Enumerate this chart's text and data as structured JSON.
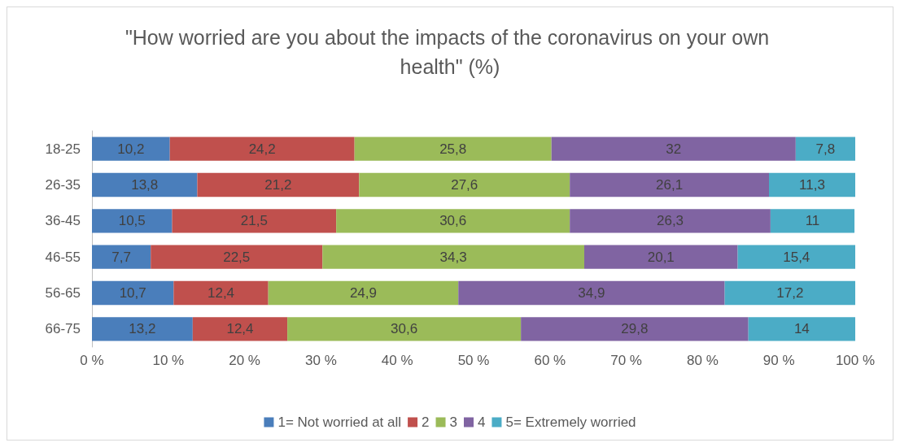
{
  "chart_data": {
    "type": "bar",
    "orientation": "horizontal",
    "stacked": true,
    "title": "\"How worried are you about the impacts of the coronavirus on your own health\" (%)",
    "categories": [
      "18-25",
      "26-35",
      "36-45",
      "46-55",
      "56-65",
      "66-75"
    ],
    "series": [
      {
        "name": "1= Not worried at all",
        "color": "#4a7ebb",
        "values": [
          10.2,
          13.8,
          10.5,
          7.7,
          10.7,
          13.2
        ],
        "value_labels": [
          "10,2",
          "13,8",
          "10,5",
          "7,7",
          "10,7",
          "13,2"
        ]
      },
      {
        "name": "2",
        "color": "#c0504d",
        "values": [
          24.2,
          21.2,
          21.5,
          22.5,
          12.4,
          12.4
        ],
        "value_labels": [
          "24,2",
          "21,2",
          "21,5",
          "22,5",
          "12,4",
          "12,4"
        ]
      },
      {
        "name": "3",
        "color": "#9bbb59",
        "values": [
          25.8,
          27.6,
          30.6,
          34.3,
          24.9,
          30.6
        ],
        "value_labels": [
          "25,8",
          "27,6",
          "30,6",
          "34,3",
          "24,9",
          "30,6"
        ]
      },
      {
        "name": "4",
        "color": "#8064a2",
        "values": [
          32,
          26.1,
          26.3,
          20.1,
          34.9,
          29.8
        ],
        "value_labels": [
          "32",
          "26,1",
          "26,3",
          "20,1",
          "34,9",
          "29,8"
        ]
      },
      {
        "name": "5= Extremely worried",
        "color": "#4bacc6",
        "values": [
          7.8,
          11.3,
          11,
          15.4,
          17.2,
          14
        ],
        "value_labels": [
          "7,8",
          "11,3",
          "11",
          "15,4",
          "17,2",
          "14"
        ]
      }
    ],
    "xlim": [
      0,
      100
    ],
    "xticks": [
      {
        "value": 0,
        "label": "0 %"
      },
      {
        "value": 10,
        "label": "10 %"
      },
      {
        "value": 20,
        "label": "20 %"
      },
      {
        "value": 30,
        "label": "30 %"
      },
      {
        "value": 40,
        "label": "40 %"
      },
      {
        "value": 50,
        "label": "50 %"
      },
      {
        "value": 60,
        "label": "60 %"
      },
      {
        "value": 70,
        "label": "70 %"
      },
      {
        "value": 80,
        "label": "80 %"
      },
      {
        "value": 90,
        "label": "90 %"
      },
      {
        "value": 100,
        "label": "100 %"
      }
    ],
    "legend": "bottom"
  }
}
